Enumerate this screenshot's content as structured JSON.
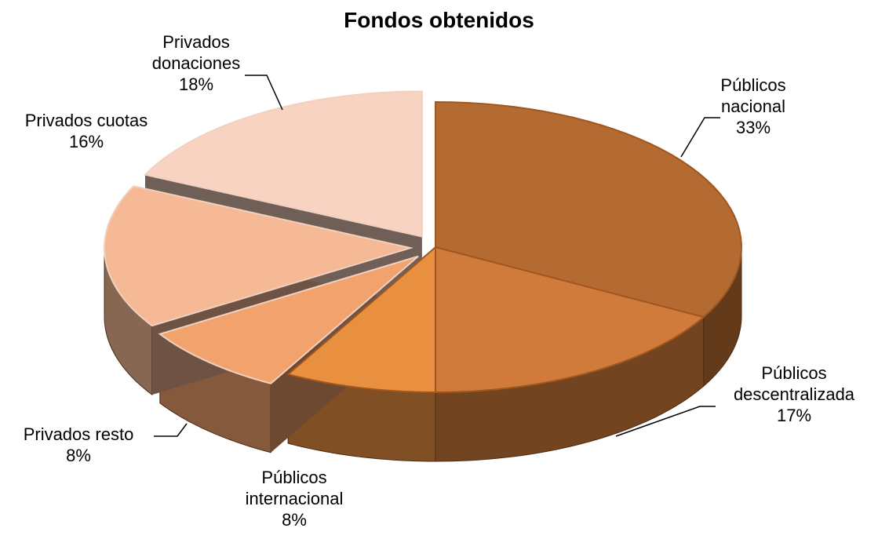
{
  "chart_data": {
    "type": "pie",
    "title": "Fondos obtenidos",
    "categories": [
      "Públicos nacional",
      "Públicos descentralizada",
      "Públicos internacional",
      "Privados resto",
      "Privados cuotas",
      "Privados donaciones"
    ],
    "values": [
      33,
      17,
      8,
      8,
      16,
      18
    ],
    "value_labels": [
      "33%",
      "17%",
      "8%",
      "8%",
      "16%",
      "18%"
    ],
    "colors": [
      "#b46b31",
      "#d07b3b",
      "#e8903f",
      "#f2a26c",
      "#f5b996",
      "#f8d3c1"
    ],
    "explode": [
      0,
      0,
      0,
      1,
      1,
      1
    ]
  }
}
